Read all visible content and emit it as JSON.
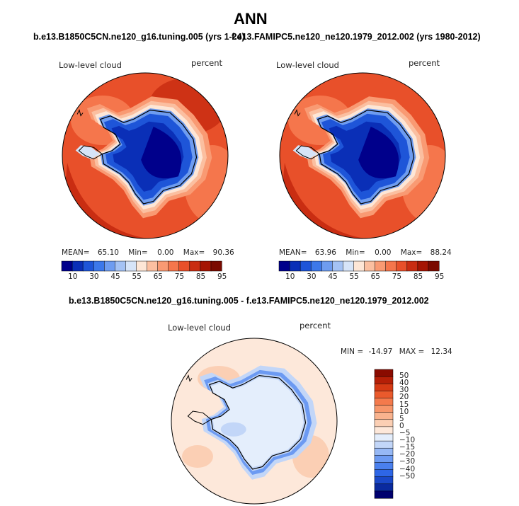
{
  "page": {
    "title": "ANN",
    "subtitle_left": "b.e13.B1850C5CN.ne120_g16.tuning.005 (yrs 1-24)",
    "subtitle_right": "f.e13.FAMIPC5.ne120_ne120.1979_2012.002 (yrs 1980-2012)",
    "subtitle_diff": "b.e13.B1850C5CN.ne120_g16.tuning.005 - f.e13.FAMIPC5.ne120_ne120.1979_2012.002"
  },
  "colors": {
    "field_scale": [
      "#00008b",
      "#0a2fb7",
      "#1e55d8",
      "#3c78ea",
      "#6e9cf0",
      "#a4c2f4",
      "#d6e4f8",
      "#fde6d6",
      "#fbbfa0",
      "#f99a73",
      "#f5764c",
      "#e8502a",
      "#c92d12",
      "#a51503",
      "#7a0a00"
    ],
    "diff_scale": [
      "#00006e",
      "#0a2a9e",
      "#1a48c8",
      "#2e66e6",
      "#4a80ee",
      "#6c9af2",
      "#96b8f5",
      "#c2d6f8",
      "#e4eefc",
      "#fde8da",
      "#fbcfb4",
      "#f9b38e",
      "#f7966a",
      "#f47a4c",
      "#ea5a2c",
      "#d63a14",
      "#b51f07",
      "#8a0b00"
    ]
  },
  "chart_data": [
    {
      "type": "heatmap",
      "projection": "south-polar-stereographic",
      "title": "Low-level cloud",
      "units": "percent",
      "stats": {
        "mean_label": "MEAN=",
        "mean": "65.10",
        "min_label": "Min=",
        "min": "0.00",
        "max_label": "Max=",
        "max": "90.36"
      },
      "colorbar_levels": [
        "10",
        "30",
        "45",
        "55",
        "65",
        "75",
        "85",
        "95"
      ],
      "description_values": {
        "antarctic_interior": "< 10",
        "sea_ice_edge": "55-65",
        "southern_ocean": "75-90"
      }
    },
    {
      "type": "heatmap",
      "projection": "south-polar-stereographic",
      "title": "Low-level cloud",
      "units": "percent",
      "stats": {
        "mean_label": "MEAN=",
        "mean": "63.96",
        "min_label": "Min=",
        "min": "0.00",
        "max_label": "Max=",
        "max": "88.24"
      },
      "colorbar_levels": [
        "10",
        "30",
        "45",
        "55",
        "65",
        "75",
        "85",
        "95"
      ]
    },
    {
      "type": "heatmap",
      "projection": "south-polar-stereographic",
      "title": "Low-level cloud",
      "units": "percent",
      "stats": {
        "min_label": "MIN =",
        "min": "-14.97",
        "max_label": "MAX =",
        "max": "12.34"
      },
      "colorbar_levels": [
        "50",
        "40",
        "30",
        "20",
        "15",
        "10",
        "5",
        "0",
        "−5",
        "−10",
        "−15",
        "−20",
        "−30",
        "−40",
        "−50"
      ]
    }
  ]
}
